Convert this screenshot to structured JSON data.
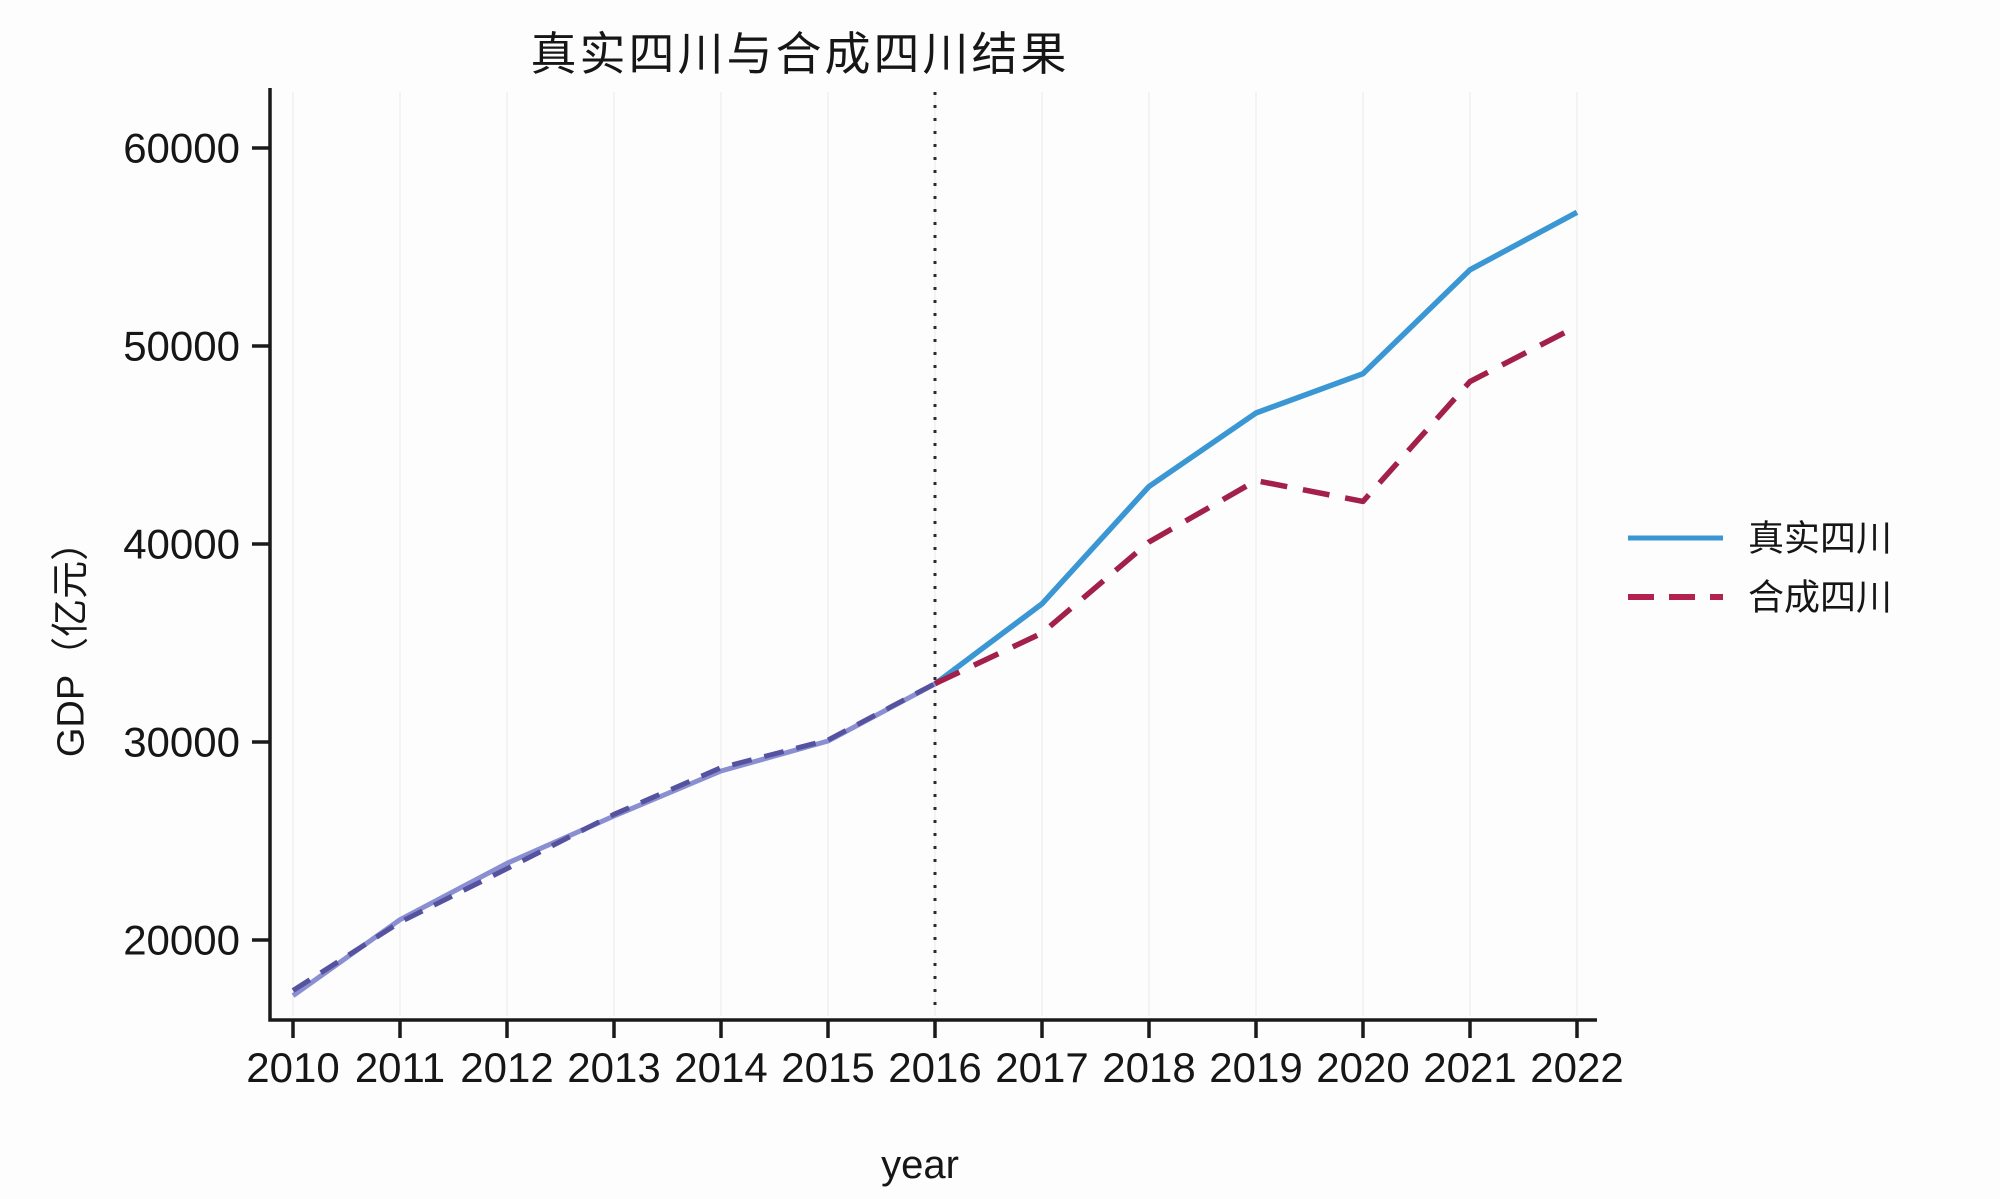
{
  "title": "真实四川与合成四川结果",
  "chart_data": {
    "type": "line",
    "title": "真实四川与合成四川结果",
    "xlabel": "year",
    "ylabel": "GDP（亿元）",
    "x": [
      2010,
      2011,
      2012,
      2013,
      2014,
      2015,
      2016,
      2017,
      2018,
      2019,
      2020,
      2021,
      2022
    ],
    "series": [
      {
        "name": "真实四川",
        "style": "solid",
        "color": "#3b97d3",
        "pre_treatment_color": "#8a8fd2",
        "values": [
          17185,
          21027,
          23873,
          26261,
          28537,
          30053,
          32935,
          36980,
          42902,
          46616,
          48599,
          53851,
          56750
        ]
      },
      {
        "name": "合成四川",
        "style": "dashed",
        "color": "#a2204a",
        "pre_treatment_color": "#55529f",
        "values": [
          17450,
          20900,
          23600,
          26350,
          28700,
          30100,
          32950,
          35500,
          40100,
          43200,
          42150,
          48200,
          51000
        ]
      }
    ],
    "yticks": [
      20000,
      30000,
      40000,
      50000,
      60000
    ],
    "ylim": [
      15900,
      63000
    ],
    "treatment_vline_x": 2016,
    "grid": "faint-vertical-per-year",
    "legend_position": "right-middle",
    "axis_color": "#1a1a1a",
    "vline_color": "#2a2a2a"
  },
  "legend": {
    "items": [
      {
        "label": "真实四川",
        "swatch": "solid-blue-line"
      },
      {
        "label": "合成四川",
        "swatch": "dashed-crimson-line"
      }
    ]
  }
}
